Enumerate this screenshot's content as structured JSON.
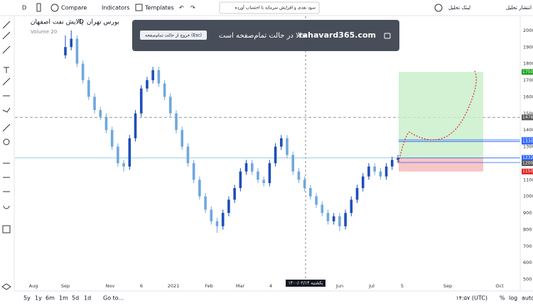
{
  "toolbar": {
    "interval": "D",
    "compare": "Compare",
    "indicators": "Indicators",
    "templates": "Templates",
    "adjust": "سود نقدی و افزایش سرمایه با احتساب آورده",
    "link": "لینک تحلیل",
    "publish": "انتشار تحلیل"
  },
  "legend": {
    "symbol": "پالایش نفت اصفهان",
    "interval": "D",
    "exchange": "بورس تهران",
    "volume": "Volume 20"
  },
  "overlay": {
    "site": "rahavard365.com",
    "message": "حالا در حالت تمام‌صفحه است",
    "exit": "خروج از حالت تمام‌صفحه (Esc)"
  },
  "bottom": {
    "ranges": [
      "5y",
      "1y",
      "6m",
      "1m",
      "5d",
      "1d"
    ],
    "goto": "Go to...",
    "time": "۱۴:۵۷ (UTC)",
    "percent": "%",
    "log": "log",
    "auto": "auto"
  },
  "chart_data": {
    "type": "candlestick",
    "ylim": [
      430,
      2085
    ],
    "yticks": [
      2000,
      1900,
      1800,
      1700,
      1600,
      1500,
      1400,
      1300,
      1100,
      1000,
      900,
      800,
      700,
      600,
      500
    ],
    "xlabels": [
      "Aug",
      "Sep",
      "Nov",
      "6",
      "2021",
      "Feb",
      "Mar",
      "4",
      "Jun",
      "Jul",
      "5",
      "Sep",
      "Oct"
    ],
    "crosshair_date": "یکشنبه ۱۴۰۰/۰۲/۱۴",
    "price_tags": [
      {
        "value": 1750,
        "color": "#1aa31a"
      },
      {
        "value": 1476,
        "color": "#555555"
      },
      {
        "value": 1340,
        "color": "#2962ff"
      },
      {
        "value": 1330,
        "color": "#2962ff"
      },
      {
        "value": 1232,
        "color": "#2962ff"
      },
      {
        "value": 1204,
        "color": "#2962ff"
      },
      {
        "value": 1200,
        "color": "#555555"
      },
      {
        "value": 1150,
        "color": "#e02020"
      }
    ],
    "position": {
      "entry": 1232,
      "target": 1750,
      "stop": 1150
    },
    "dashed_level": 1476,
    "candles": [
      [
        1850,
        1970,
        1830,
        1900
      ],
      [
        1900,
        2000,
        1880,
        1950
      ],
      [
        1950,
        1970,
        1780,
        1800
      ],
      [
        1800,
        1820,
        1680,
        1700
      ],
      [
        1700,
        1720,
        1580,
        1600
      ],
      [
        1600,
        1620,
        1500,
        1520
      ],
      [
        1520,
        1540,
        1460,
        1480
      ],
      [
        1480,
        1500,
        1380,
        1400
      ],
      [
        1400,
        1420,
        1280,
        1300
      ],
      [
        1300,
        1320,
        1180,
        1200
      ],
      [
        1200,
        1220,
        1150,
        1180
      ],
      [
        1180,
        1370,
        1160,
        1350
      ],
      [
        1350,
        1520,
        1330,
        1500
      ],
      [
        1500,
        1670,
        1480,
        1650
      ],
      [
        1650,
        1720,
        1630,
        1700
      ],
      [
        1700,
        1780,
        1680,
        1760
      ],
      [
        1760,
        1780,
        1660,
        1680
      ],
      [
        1680,
        1700,
        1580,
        1600
      ],
      [
        1600,
        1620,
        1480,
        1500
      ],
      [
        1500,
        1520,
        1380,
        1400
      ],
      [
        1400,
        1420,
        1280,
        1300
      ],
      [
        1300,
        1320,
        1180,
        1200
      ],
      [
        1200,
        1220,
        1080,
        1100
      ],
      [
        1100,
        1120,
        980,
        1000
      ],
      [
        1000,
        1020,
        900,
        920
      ],
      [
        920,
        940,
        830,
        850
      ],
      [
        850,
        870,
        780,
        820
      ],
      [
        820,
        920,
        800,
        900
      ],
      [
        900,
        1000,
        880,
        980
      ],
      [
        980,
        1070,
        960,
        1050
      ],
      [
        1050,
        1170,
        1030,
        1150
      ],
      [
        1150,
        1220,
        1130,
        1200
      ],
      [
        1200,
        1220,
        1130,
        1150
      ],
      [
        1150,
        1170,
        1080,
        1100
      ],
      [
        1100,
        1120,
        1060,
        1080
      ],
      [
        1080,
        1220,
        1060,
        1200
      ],
      [
        1200,
        1320,
        1180,
        1300
      ],
      [
        1300,
        1370,
        1280,
        1350
      ],
      [
        1350,
        1370,
        1230,
        1250
      ],
      [
        1250,
        1270,
        1130,
        1150
      ],
      [
        1150,
        1170,
        1080,
        1100
      ],
      [
        1100,
        1120,
        1030,
        1050
      ],
      [
        1050,
        1070,
        980,
        1000
      ],
      [
        1000,
        1020,
        930,
        950
      ],
      [
        950,
        970,
        880,
        900
      ],
      [
        900,
        920,
        830,
        850
      ],
      [
        850,
        900,
        830,
        880
      ],
      [
        880,
        900,
        790,
        820
      ],
      [
        820,
        920,
        800,
        900
      ],
      [
        900,
        1000,
        880,
        980
      ],
      [
        980,
        1070,
        960,
        1050
      ],
      [
        1050,
        1140,
        1030,
        1120
      ],
      [
        1120,
        1200,
        1100,
        1180
      ],
      [
        1180,
        1200,
        1130,
        1150
      ],
      [
        1150,
        1170,
        1100,
        1120
      ],
      [
        1120,
        1200,
        1100,
        1180
      ],
      [
        1180,
        1240,
        1160,
        1220
      ],
      [
        1220,
        1250,
        1200,
        1232
      ]
    ]
  }
}
